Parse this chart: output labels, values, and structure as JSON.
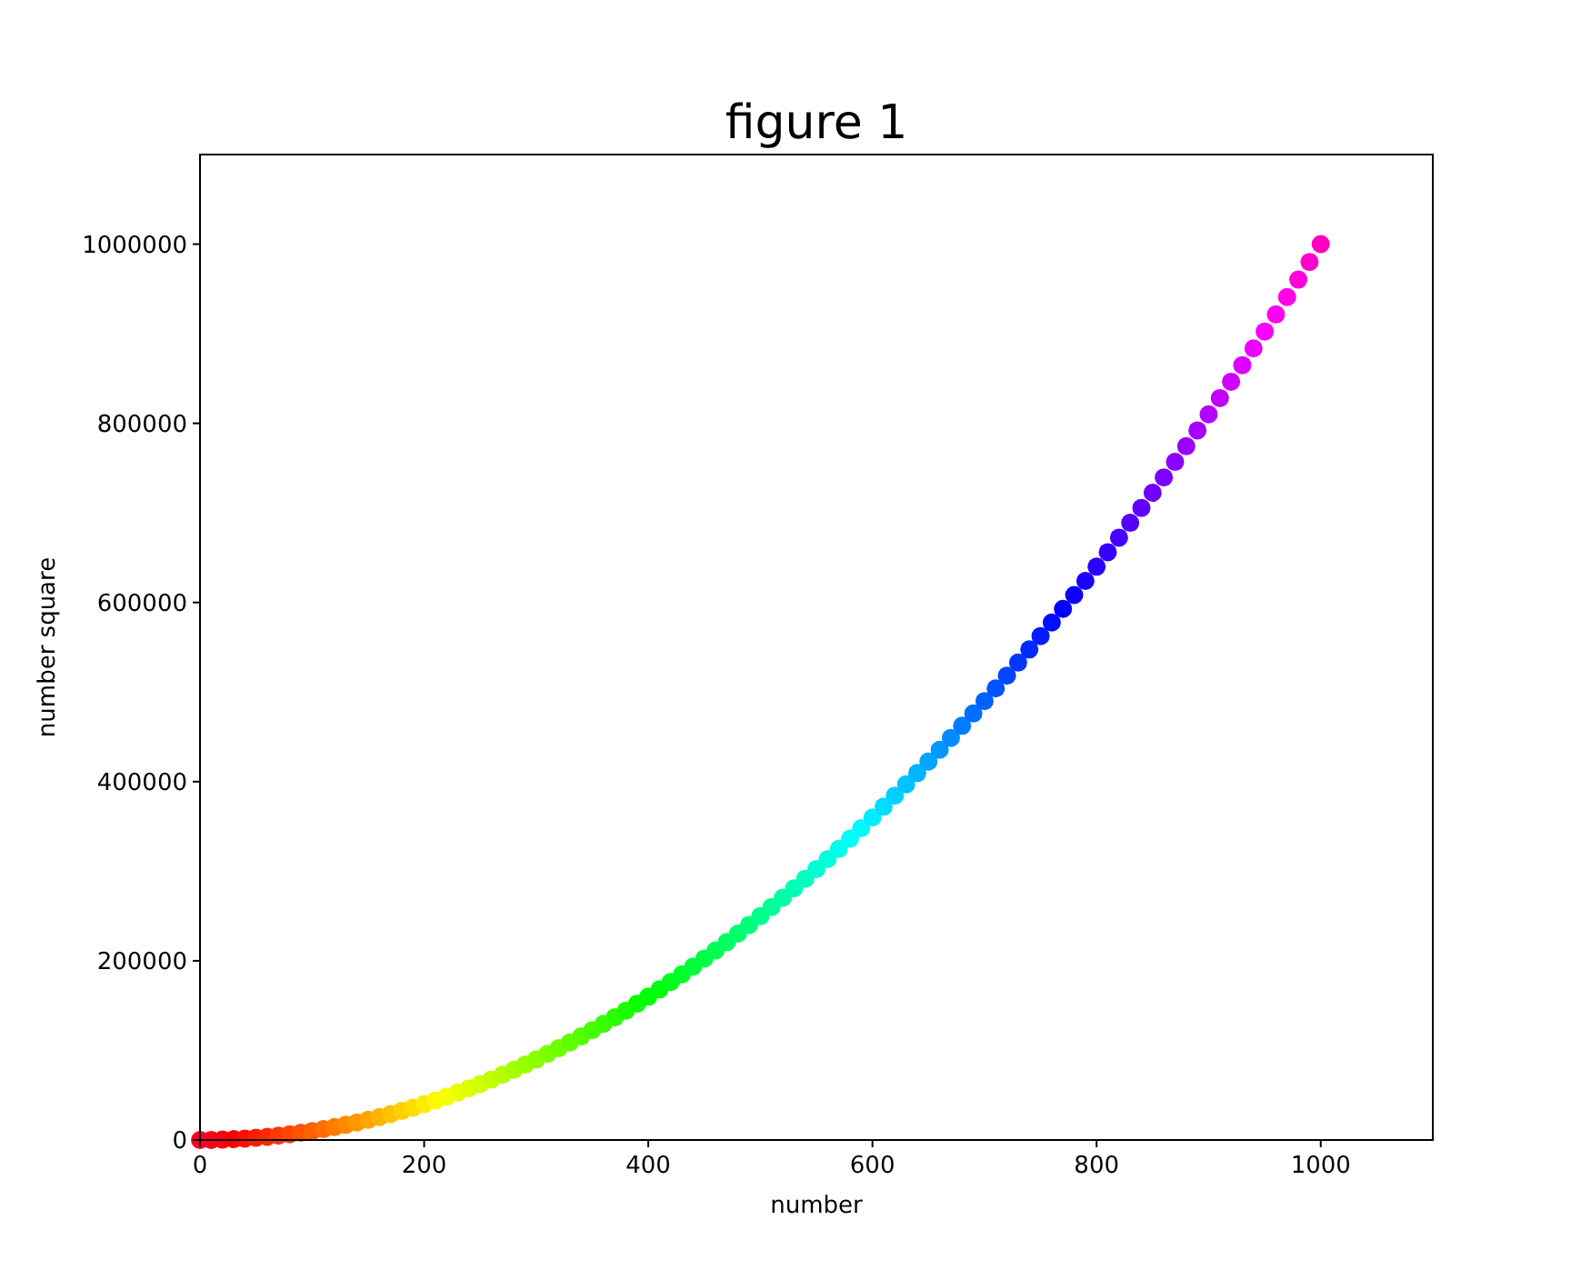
{
  "chart_data": {
    "type": "scatter",
    "title": "figure 1",
    "xlabel": "number",
    "ylabel": "number square",
    "xlim": [
      0,
      1100
    ],
    "ylim": [
      0,
      1100000
    ],
    "xticks": [
      0,
      200,
      400,
      600,
      800,
      1000
    ],
    "yticks": [
      0,
      200000,
      400000,
      600000,
      800000,
      1000000
    ],
    "marker": "circle",
    "x": [
      0,
      10,
      20,
      30,
      40,
      50,
      60,
      70,
      80,
      90,
      100,
      110,
      120,
      130,
      140,
      150,
      160,
      170,
      180,
      190,
      200,
      210,
      220,
      230,
      240,
      250,
      260,
      270,
      280,
      290,
      300,
      310,
      320,
      330,
      340,
      350,
      360,
      370,
      380,
      390,
      400,
      410,
      420,
      430,
      440,
      450,
      460,
      470,
      480,
      490,
      500,
      510,
      520,
      530,
      540,
      550,
      560,
      570,
      580,
      590,
      600,
      610,
      620,
      630,
      640,
      650,
      660,
      670,
      680,
      690,
      700,
      710,
      720,
      730,
      740,
      750,
      760,
      770,
      780,
      790,
      800,
      810,
      820,
      830,
      840,
      850,
      860,
      870,
      880,
      890,
      900,
      910,
      920,
      930,
      940,
      950,
      960,
      970,
      980,
      990,
      1000
    ],
    "values": [
      0,
      100,
      400,
      900,
      1600,
      2500,
      3600,
      4900,
      6400,
      8100,
      10000,
      12100,
      14400,
      16900,
      19600,
      22500,
      25600,
      28900,
      32400,
      36100,
      40000,
      44100,
      48400,
      52900,
      57600,
      62500,
      67600,
      72900,
      78400,
      84100,
      90000,
      96100,
      102400,
      108900,
      115600,
      122500,
      129600,
      136900,
      144400,
      152100,
      160000,
      168100,
      176400,
      184900,
      193600,
      202500,
      211600,
      220900,
      230400,
      240100,
      250000,
      260100,
      270400,
      280900,
      291600,
      302500,
      313600,
      324900,
      336400,
      348100,
      360000,
      372100,
      384400,
      396900,
      409600,
      422500,
      435600,
      448900,
      462400,
      476100,
      490000,
      504100,
      518400,
      532900,
      547600,
      562500,
      577600,
      592900,
      608400,
      624100,
      640000,
      656100,
      672400,
      688900,
      705600,
      722500,
      739600,
      756900,
      774400,
      792100,
      810000,
      828100,
      846400,
      864900,
      883600,
      902500,
      921600,
      940900,
      960400,
      980100,
      1000000
    ],
    "colors": [
      "#ff0029",
      "#ff001b",
      "#ff000e",
      "#ff0000",
      "#ff0e00",
      "#ff1c00",
      "#ff2900",
      "#ff3700",
      "#ff4500",
      "#ff5300",
      "#ff6000",
      "#ff6e00",
      "#ff7c00",
      "#ff8a00",
      "#ff9800",
      "#ffa500",
      "#ffb300",
      "#ffc100",
      "#ffcf00",
      "#ffdd00",
      "#ffea00",
      "#fff800",
      "#f8ff00",
      "#eaff00",
      "#ddff00",
      "#cfff00",
      "#c1ff00",
      "#b3ff00",
      "#a5ff00",
      "#98ff00",
      "#8aff00",
      "#7cff00",
      "#6eff00",
      "#60ff00",
      "#53ff00",
      "#45ff00",
      "#37ff00",
      "#29ff00",
      "#1cff00",
      "#0eff00",
      "#00ff00",
      "#00ff0e",
      "#00ff1b",
      "#00ff29",
      "#00ff37",
      "#00ff44",
      "#00ff52",
      "#00ff60",
      "#00ff6e",
      "#00ff7b",
      "#00ff89",
      "#00ff97",
      "#00ffa5",
      "#00ffb2",
      "#00ffc0",
      "#00ffce",
      "#00ffdb",
      "#00ffe9",
      "#00fff7",
      "#00f9ff",
      "#00ecff",
      "#00deff",
      "#00d0ff",
      "#00c2ff",
      "#00b4ff",
      "#00a6ff",
      "#0098ff",
      "#008bff",
      "#007dff",
      "#006fff",
      "#0061ff",
      "#0053ff",
      "#0045ff",
      "#0037ff",
      "#002aff",
      "#001cff",
      "#000eff",
      "#0000ff",
      "#0e00ff",
      "#1c00ff",
      "#2a00ff",
      "#3700ff",
      "#4500ff",
      "#5300ff",
      "#6100ff",
      "#6f00ff",
      "#7d00ff",
      "#8b00ff",
      "#9800ff",
      "#a600ff",
      "#b400ff",
      "#c200ff",
      "#d000ff",
      "#de00ff",
      "#ec00ff",
      "#f900ff",
      "#ff00f7",
      "#ff00e9",
      "#ff00db",
      "#ff00cd",
      "#ff00bf"
    ]
  }
}
